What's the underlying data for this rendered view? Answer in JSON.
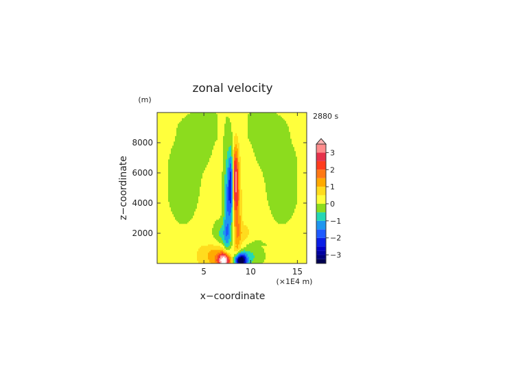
{
  "chart_data": {
    "type": "heatmap",
    "title": "zonal velocity",
    "time_label": "2880 s",
    "xlabel": "x−coordinate",
    "ylabel": "z−coordinate",
    "x_unit": "(×1E4 m)",
    "y_unit": "(m)",
    "xlim": [
      0,
      16
    ],
    "ylim": [
      0,
      10000
    ],
    "x_ticks": [
      {
        "value": 5,
        "label": "5"
      },
      {
        "value": 10,
        "label": "10"
      },
      {
        "value": 15,
        "label": "15"
      }
    ],
    "y_ticks": [
      {
        "value": 2000,
        "label": "2000"
      },
      {
        "value": 4000,
        "label": "4000"
      },
      {
        "value": 6000,
        "label": "6000"
      },
      {
        "value": 8000,
        "label": "8000"
      }
    ],
    "colorbar": {
      "range": [
        -3.5,
        3.5
      ],
      "levels": [
        {
          "lo": -3.5,
          "hi": -3.25,
          "color": "#000050"
        },
        {
          "lo": -3.25,
          "hi": -3.0,
          "color": "#00007a"
        },
        {
          "lo": -3.0,
          "hi": -2.75,
          "color": "#0000a0"
        },
        {
          "lo": -2.75,
          "hi": -2.5,
          "color": "#0000c8"
        },
        {
          "lo": -2.5,
          "hi": -2.0,
          "color": "#0a1ee6"
        },
        {
          "lo": -2.0,
          "hi": -1.5,
          "color": "#1e5aff"
        },
        {
          "lo": -1.5,
          "hi": -1.0,
          "color": "#1e96f0"
        },
        {
          "lo": -1.0,
          "hi": -0.5,
          "color": "#24d7b4"
        },
        {
          "lo": -0.5,
          "hi": 0.0,
          "color": "#8cdc1e"
        },
        {
          "lo": 0.0,
          "hi": 0.5,
          "color": "#ffff3c"
        },
        {
          "lo": 0.5,
          "hi": 1.0,
          "color": "#ffdc1e"
        },
        {
          "lo": 1.0,
          "hi": 1.5,
          "color": "#ffaa00"
        },
        {
          "lo": 1.5,
          "hi": 2.0,
          "color": "#ff7814"
        },
        {
          "lo": 2.0,
          "hi": 2.5,
          "color": "#ff3c1e"
        },
        {
          "lo": 2.5,
          "hi": 3.0,
          "color": "#e6324b"
        },
        {
          "lo": 3.0,
          "hi": 3.5,
          "color": "#ff8c8c"
        },
        {
          "lo": 3.5,
          "hi": 4.0,
          "color": "#ffb4b4"
        }
      ],
      "ticks": [
        {
          "value": -3,
          "label": "−3"
        },
        {
          "value": -2,
          "label": "−2"
        },
        {
          "value": -1,
          "label": "−1"
        },
        {
          "value": 0,
          "label": "0"
        },
        {
          "value": 1,
          "label": "1"
        },
        {
          "value": 2,
          "label": "2"
        },
        {
          "value": 3,
          "label": "3"
        }
      ]
    },
    "field_model": {
      "description": "approximate zonal velocity field (data units: x in 1E4 m, z in m)",
      "base_positive": 0.15,
      "base_negative": -0.1,
      "negative_side_bands": [
        {
          "x": 2.8,
          "z": 5500,
          "sx": 1.1,
          "sz": 1800,
          "amp": -0.55
        },
        {
          "x": 13.4,
          "z": 5500,
          "sx": 1.1,
          "sz": 1800,
          "amp": -0.55
        },
        {
          "x": 4.6,
          "z": 8200,
          "sx": 1.0,
          "sz": 1200,
          "amp": -0.4
        },
        {
          "x": 11.6,
          "z": 8200,
          "sx": 1.0,
          "sz": 1200,
          "amp": -0.4
        },
        {
          "x": 8.1,
          "z": 9200,
          "sx": 3.5,
          "sz": 600,
          "amp": -0.3
        }
      ],
      "jets": [
        {
          "x": 7.2,
          "z": 200,
          "sx": 0.45,
          "sz": 320,
          "amp": 4.2
        },
        {
          "x": 8.9,
          "z": 200,
          "sx": 0.45,
          "sz": 320,
          "amp": -4.2
        },
        {
          "x": 6.4,
          "z": 500,
          "sx": 1.2,
          "sz": 650,
          "amp": 1.0
        },
        {
          "x": 9.8,
          "z": 500,
          "sx": 1.2,
          "sz": 650,
          "amp": -0.9
        },
        {
          "x": 7.5,
          "z": 3300,
          "sx": 0.28,
          "sz": 2800,
          "amp": -1.4
        },
        {
          "x": 8.6,
          "z": 3300,
          "sx": 0.28,
          "sz": 2800,
          "amp": 1.3
        },
        {
          "x": 7.9,
          "z": 5200,
          "sx": 0.2,
          "sz": 1500,
          "amp": -2.3
        },
        {
          "x": 8.35,
          "z": 5600,
          "sx": 0.2,
          "sz": 1400,
          "amp": 2.6
        },
        {
          "x": 6.9,
          "z": 1900,
          "sx": 0.6,
          "sz": 600,
          "amp": -0.8
        },
        {
          "x": 9.3,
          "z": 1900,
          "sx": 0.6,
          "sz": 600,
          "amp": 0.6
        }
      ]
    }
  }
}
